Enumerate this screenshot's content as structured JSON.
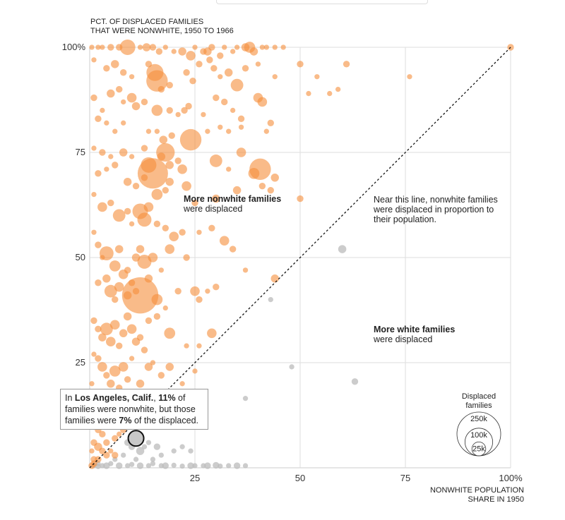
{
  "chart_data": {
    "type": "scatter",
    "ytitle": [
      "PCT. OF DISPLACED FAMILIES",
      "THAT WERE NONWHITE, 1950 TO 1966"
    ],
    "xtitle": [
      "NONWHITE POPULATION",
      "SHARE IN 1950"
    ],
    "xlim": [
      0,
      100
    ],
    "ylim": [
      0,
      100
    ],
    "xticks": [
      {
        "v": 25,
        "label": "25"
      },
      {
        "v": 50,
        "label": "50"
      },
      {
        "v": 75,
        "label": "75"
      },
      {
        "v": 100,
        "label": "100%"
      }
    ],
    "yticks": [
      {
        "v": 100,
        "label": "100%"
      },
      {
        "v": 75,
        "label": "75"
      },
      {
        "v": 50,
        "label": "50"
      },
      {
        "v": 25,
        "label": "25"
      }
    ],
    "grid": true,
    "reference_line": "y = x",
    "colors": {
      "above": "#f58d3a",
      "below": "#bbbbbb",
      "highlight": "#c8c8c8",
      "grid": "#dddddd"
    },
    "annotations": {
      "more_nonwhite": {
        "bold": "More nonwhite families",
        "rest": "were displaced"
      },
      "more_white": {
        "bold": "More white families",
        "rest": "were displaced"
      },
      "near_line": [
        "Near this line, nonwhite families",
        "were displaced in proportion to",
        "their population."
      ]
    },
    "callout": {
      "pre": "In ",
      "city": "Los Angeles, Calif.",
      "sep": ", ",
      "pct1": "11%",
      "mid1": " of families were nonwhite, but those families were ",
      "pct2": "7%",
      "end": " of the displaced."
    },
    "highlight": {
      "x": 11,
      "y": 7,
      "size": 8
    },
    "legend": {
      "title": [
        "Displaced",
        "families"
      ],
      "sizes": [
        {
          "label": "250k",
          "value": 250
        },
        {
          "label": "100k",
          "value": 100
        },
        {
          "label": "25k",
          "value": 25
        }
      ]
    },
    "points_above": [
      [
        0.5,
        100,
        1
      ],
      [
        2,
        100,
        1
      ],
      [
        3,
        100,
        1
      ],
      [
        5,
        100,
        2
      ],
      [
        7,
        100,
        2
      ],
      [
        9,
        100,
        8
      ],
      [
        12,
        100,
        1
      ],
      [
        13.5,
        100,
        3
      ],
      [
        15,
        100,
        2
      ],
      [
        16.5,
        99,
        2
      ],
      [
        18,
        100,
        1
      ],
      [
        20,
        99,
        1
      ],
      [
        22,
        99,
        3
      ],
      [
        24,
        98,
        4
      ],
      [
        25,
        100,
        1
      ],
      [
        27,
        99,
        2
      ],
      [
        28,
        99,
        3
      ],
      [
        29,
        100,
        2
      ],
      [
        31,
        98,
        2
      ],
      [
        32,
        100,
        1
      ],
      [
        34,
        99,
        1
      ],
      [
        35,
        100,
        1
      ],
      [
        37,
        100,
        3
      ],
      [
        38,
        100,
        5
      ],
      [
        39,
        99,
        3
      ],
      [
        41,
        100,
        1
      ],
      [
        42,
        100,
        1
      ],
      [
        44,
        100,
        1
      ],
      [
        46,
        100,
        1
      ],
      [
        1,
        97,
        1
      ],
      [
        4,
        95,
        2
      ],
      [
        6,
        96,
        3
      ],
      [
        8,
        94,
        2
      ],
      [
        10,
        93,
        1
      ],
      [
        14,
        96,
        2
      ],
      [
        15.5,
        94,
        9
      ],
      [
        16,
        92,
        12
      ],
      [
        17,
        90,
        2
      ],
      [
        19,
        91,
        2
      ],
      [
        23,
        94,
        2
      ],
      [
        24.5,
        92,
        2
      ],
      [
        26,
        96,
        2
      ],
      [
        28.5,
        97,
        2
      ],
      [
        29.5,
        95,
        2
      ],
      [
        31,
        93,
        1
      ],
      [
        33,
        94,
        3
      ],
      [
        35,
        91,
        6
      ],
      [
        37,
        95,
        2
      ],
      [
        40,
        96,
        1
      ],
      [
        44,
        93,
        1
      ],
      [
        1,
        88,
        2
      ],
      [
        3,
        85,
        1
      ],
      [
        5,
        89,
        3
      ],
      [
        7,
        90,
        2
      ],
      [
        8,
        87,
        1
      ],
      [
        10,
        88,
        4
      ],
      [
        11,
        86,
        3
      ],
      [
        13,
        87,
        2
      ],
      [
        16,
        85,
        5
      ],
      [
        19,
        85,
        2
      ],
      [
        21,
        84,
        1
      ],
      [
        22.5,
        85,
        2
      ],
      [
        23.5,
        86,
        2
      ],
      [
        27,
        84,
        1
      ],
      [
        30,
        88,
        2
      ],
      [
        32,
        87,
        2
      ],
      [
        34,
        85,
        1
      ],
      [
        36,
        83,
        2
      ],
      [
        40,
        88,
        4
      ],
      [
        41,
        87,
        4
      ],
      [
        43,
        82,
        2
      ],
      [
        2,
        83,
        2
      ],
      [
        4,
        82,
        1
      ],
      [
        6,
        80,
        1
      ],
      [
        8,
        82,
        1
      ],
      [
        14,
        80,
        1
      ],
      [
        16,
        80,
        1
      ],
      [
        17.5,
        78,
        3
      ],
      [
        19.5,
        79,
        2
      ],
      [
        24,
        78,
        12
      ],
      [
        28,
        80,
        1
      ],
      [
        31,
        81,
        1
      ],
      [
        33,
        80,
        1
      ],
      [
        36,
        81,
        1
      ],
      [
        42,
        80,
        1
      ],
      [
        1,
        76,
        1
      ],
      [
        3,
        75,
        2
      ],
      [
        5,
        74,
        1
      ],
      [
        8,
        75,
        3
      ],
      [
        10,
        74,
        1
      ],
      [
        13,
        76,
        2
      ],
      [
        14,
        72,
        8
      ],
      [
        15,
        70,
        18
      ],
      [
        17,
        74,
        3
      ],
      [
        18,
        75,
        10
      ],
      [
        19,
        72,
        3
      ],
      [
        21,
        73,
        2
      ],
      [
        22,
        71,
        4
      ],
      [
        30,
        73,
        6
      ],
      [
        33,
        71,
        1
      ],
      [
        36,
        75,
        4
      ],
      [
        39,
        70,
        5
      ],
      [
        40.5,
        71,
        12
      ],
      [
        44,
        69,
        3
      ],
      [
        2,
        70,
        2
      ],
      [
        4,
        71,
        1
      ],
      [
        6,
        72,
        2
      ],
      [
        9,
        68,
        3
      ],
      [
        11,
        67,
        2
      ],
      [
        13,
        69,
        2
      ],
      [
        16,
        65,
        5
      ],
      [
        18,
        66,
        2
      ],
      [
        19,
        68,
        3
      ],
      [
        23,
        67,
        4
      ],
      [
        25,
        63,
        2
      ],
      [
        30,
        64,
        3
      ],
      [
        35,
        66,
        3
      ],
      [
        41,
        67,
        2
      ],
      [
        43,
        66,
        2
      ],
      [
        50,
        64,
        2
      ],
      [
        1,
        65,
        1
      ],
      [
        3,
        62,
        4
      ],
      [
        5,
        63,
        2
      ],
      [
        7,
        60,
        6
      ],
      [
        9,
        61,
        2
      ],
      [
        10,
        58,
        1
      ],
      [
        12,
        61,
        8
      ],
      [
        13,
        59,
        7
      ],
      [
        14,
        62,
        4
      ],
      [
        16,
        58,
        2
      ],
      [
        18,
        57,
        2
      ],
      [
        20,
        55,
        4
      ],
      [
        22,
        56,
        2
      ],
      [
        26,
        56,
        1
      ],
      [
        29,
        57,
        2
      ],
      [
        32,
        54,
        4
      ],
      [
        34,
        52,
        2
      ],
      [
        1,
        56,
        1
      ],
      [
        2,
        53,
        2
      ],
      [
        3,
        50,
        1
      ],
      [
        4,
        51,
        7
      ],
      [
        6,
        48,
        5
      ],
      [
        7,
        52,
        3
      ],
      [
        9,
        47,
        2
      ],
      [
        11,
        50,
        3
      ],
      [
        12,
        52,
        3
      ],
      [
        13,
        49,
        7
      ],
      [
        15,
        50,
        4
      ],
      [
        17,
        47,
        1
      ],
      [
        19,
        52,
        4
      ],
      [
        23,
        50,
        2
      ],
      [
        2,
        44,
        2
      ],
      [
        4,
        45,
        3
      ],
      [
        5,
        42,
        6
      ],
      [
        6,
        40,
        2
      ],
      [
        7,
        43,
        4
      ],
      [
        8,
        46,
        4
      ],
      [
        9,
        41,
        3
      ],
      [
        10,
        44,
        2
      ],
      [
        11,
        42,
        2
      ],
      [
        12,
        41,
        22
      ],
      [
        14,
        45,
        3
      ],
      [
        16,
        40,
        5
      ],
      [
        18,
        38,
        1
      ],
      [
        21,
        42,
        2
      ],
      [
        25,
        42,
        4
      ],
      [
        26,
        40,
        2
      ],
      [
        28,
        42,
        1
      ],
      [
        30,
        43,
        2
      ],
      [
        37,
        47,
        1
      ],
      [
        44,
        45,
        3
      ],
      [
        1,
        35,
        2
      ],
      [
        2,
        33,
        2
      ],
      [
        3,
        31,
        3
      ],
      [
        4,
        33,
        6
      ],
      [
        5,
        30,
        4
      ],
      [
        6,
        34,
        4
      ],
      [
        7,
        29,
        2
      ],
      [
        8,
        32,
        3
      ],
      [
        9,
        36,
        3
      ],
      [
        10,
        33,
        4
      ],
      [
        11,
        30,
        3
      ],
      [
        12,
        31,
        2
      ],
      [
        13,
        28,
        2
      ],
      [
        14,
        35,
        2
      ],
      [
        16,
        36,
        2
      ],
      [
        19,
        32,
        5
      ],
      [
        23,
        29,
        1
      ],
      [
        26,
        29,
        1
      ],
      [
        29,
        32,
        4
      ],
      [
        1,
        27,
        1
      ],
      [
        2,
        26,
        2
      ],
      [
        3,
        24,
        4
      ],
      [
        4,
        22,
        2
      ],
      [
        5,
        20,
        3
      ],
      [
        6,
        23,
        5
      ],
      [
        7,
        19,
        2
      ],
      [
        8,
        24,
        4
      ],
      [
        9,
        21,
        2
      ],
      [
        10,
        26,
        1
      ],
      [
        12,
        20,
        3
      ],
      [
        14,
        24,
        3
      ],
      [
        15,
        25,
        1
      ],
      [
        17,
        22,
        2
      ],
      [
        19,
        24,
        3
      ],
      [
        22,
        20,
        1
      ],
      [
        25,
        23,
        1
      ],
      [
        0.5,
        20,
        1
      ],
      [
        1,
        18,
        2
      ],
      [
        2,
        15,
        2
      ],
      [
        3,
        13,
        3
      ],
      [
        4,
        16,
        2
      ],
      [
        5,
        12,
        2
      ],
      [
        7,
        14,
        3
      ],
      [
        9,
        15,
        1
      ],
      [
        11,
        13,
        4
      ],
      [
        14,
        17,
        2
      ],
      [
        13.5,
        18,
        2
      ],
      [
        16,
        14,
        2
      ],
      [
        18,
        16,
        2
      ],
      [
        0.5,
        12,
        1
      ],
      [
        1,
        10,
        3
      ],
      [
        2,
        9,
        2
      ],
      [
        3,
        8,
        2
      ],
      [
        4,
        6,
        2
      ],
      [
        5,
        10,
        1
      ],
      [
        6,
        7,
        2
      ],
      [
        7,
        8,
        1
      ],
      [
        8,
        9,
        2
      ],
      [
        1,
        6,
        2
      ],
      [
        2,
        5,
        3
      ],
      [
        3,
        4,
        2
      ],
      [
        4,
        3,
        2
      ],
      [
        5,
        4,
        1
      ],
      [
        6,
        3,
        2
      ],
      [
        0.5,
        4,
        1
      ],
      [
        1,
        2,
        2
      ],
      [
        2,
        2,
        2
      ],
      [
        1,
        1,
        2
      ],
      [
        0.5,
        0.5,
        2
      ],
      [
        100,
        100,
        2
      ],
      [
        50,
        96,
        2
      ],
      [
        54,
        93,
        1
      ],
      [
        61,
        96,
        2
      ],
      [
        76,
        93,
        1
      ],
      [
        59,
        90,
        1
      ],
      [
        52,
        89,
        1
      ],
      [
        57,
        89,
        1
      ]
    ],
    "points_below": [
      [
        60,
        52,
        3
      ],
      [
        43,
        40,
        1
      ],
      [
        37,
        16.5,
        1
      ],
      [
        48,
        24,
        1
      ],
      [
        63,
        20.5,
        2
      ],
      [
        9,
        6,
        2
      ],
      [
        10,
        5,
        2
      ],
      [
        12,
        4,
        3
      ],
      [
        13,
        5,
        1
      ],
      [
        14,
        6,
        1
      ],
      [
        16,
        5,
        2
      ],
      [
        17,
        3,
        1
      ],
      [
        15,
        2,
        1
      ],
      [
        11,
        2,
        1
      ],
      [
        8,
        3,
        1
      ],
      [
        6,
        2,
        1
      ],
      [
        5,
        1,
        1
      ],
      [
        4,
        0.5,
        2
      ],
      [
        3,
        0.5,
        1
      ],
      [
        2,
        0.3,
        1
      ],
      [
        7,
        0.5,
        2
      ],
      [
        9,
        0.5,
        1
      ],
      [
        10,
        0.8,
        1
      ],
      [
        12,
        0.5,
        2
      ],
      [
        14,
        0.5,
        1
      ],
      [
        15,
        1,
        1
      ],
      [
        17,
        0.5,
        1
      ],
      [
        18,
        0.5,
        2
      ],
      [
        20,
        0.6,
        1
      ],
      [
        22,
        0.4,
        1
      ],
      [
        24,
        0.5,
        2
      ],
      [
        25,
        0.5,
        1
      ],
      [
        27,
        0.5,
        1
      ],
      [
        28,
        0.5,
        2
      ],
      [
        30,
        0.6,
        2
      ],
      [
        31,
        0.4,
        1
      ],
      [
        33,
        0.5,
        1
      ],
      [
        35,
        0.5,
        2
      ],
      [
        37,
        0.5,
        1
      ],
      [
        22,
        5,
        1
      ],
      [
        20,
        4,
        1
      ],
      [
        24,
        4,
        1
      ],
      [
        1,
        0.5,
        1
      ],
      [
        2,
        1,
        1
      ]
    ]
  }
}
